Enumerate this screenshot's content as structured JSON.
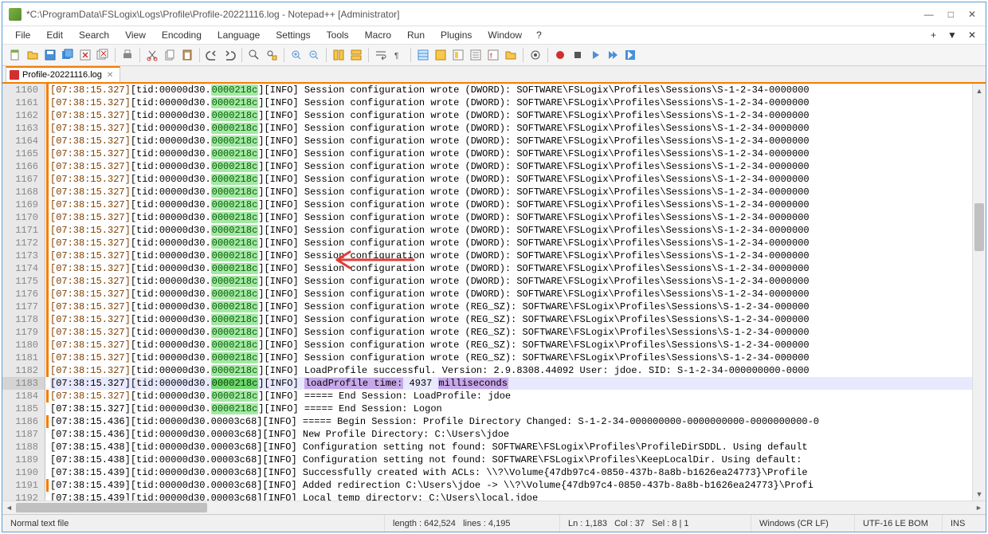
{
  "window": {
    "title": "*C:\\ProgramData\\FSLogix\\Logs\\Profile\\Profile-20221116.log - Notepad++ [Administrator]"
  },
  "menu": {
    "items": [
      "File",
      "Edit",
      "Search",
      "View",
      "Encoding",
      "Language",
      "Settings",
      "Tools",
      "Macro",
      "Run",
      "Plugins",
      "Window",
      "?"
    ]
  },
  "tab": {
    "name": "Profile-20221116.log"
  },
  "colors": {
    "tab_active_border": "#f57c00",
    "margin_bar": "#f57c00",
    "gutter_bg": "#e8e8e8",
    "hex_bg": "#a5e8a5",
    "hex_cur_bg": "#6fd66f",
    "highlight_bg": "#c5a8e8",
    "current_line_bg": "#e8e8ff",
    "arrow": "#e53935",
    "timestamp": "#804000"
  },
  "editor": {
    "first_line": 1160,
    "current_line": 1183,
    "timestamp": "[07:38:15.327]",
    "timestamp_436": "[07:38:15.436]",
    "timestamp_438": "[07:38:15.438]",
    "timestamp_439": "[07:38:15.439]",
    "tid_prefix": "[tid:00000d30.",
    "hex": "0000218c",
    "hex68": "00003c68",
    "info": "][INFO]",
    "pad": "            ",
    "msg_dword": "Session configuration wrote (DWORD): SOFTWARE\\FSLogix\\Profiles\\Sessions\\S-1-2-34-0000000",
    "msg_regsz": "Session configuration wrote (REG_SZ): SOFTWARE\\FSLogix\\Profiles\\Sessions\\S-1-2-34-000000",
    "msg_loadok": "LoadProfile successful. Version: 2.9.8308.44092 User: jdoe. SID: S-1-2-34-000000000-0000",
    "msg_lp_pre": "loadProfile time:",
    "msg_lp_mid": " 4937 ",
    "msg_lp_post": "milliseconds",
    "msg_end1": "===== End Session:  LoadProfile: jdoe",
    "msg_end2": "===== End Session: Logon",
    "msg_begin": "===== Begin Session: Profile Directory Changed: S-1-2-34-000000000-0000000000-0000000000-0",
    "msg_newdir": "New Profile Directory: C:\\Users\\jdoe",
    "msg_cfg1": "Configuration setting not found: SOFTWARE\\FSLogix\\Profiles\\ProfileDirSDDL.  Using default",
    "msg_cfg2": "Configuration setting not found: SOFTWARE\\FSLogix\\Profiles\\KeepLocalDir.  Using default: ",
    "msg_acl": "Successfully created with ACLs: \\\\?\\Volume{47db97c4-0850-437b-8a8b-b1626ea24773}\\Profile",
    "msg_redir": "Added redirection C:\\Users\\jdoe -> \\\\?\\Volume{47db97c4-0850-437b-8a8b-b1626ea24773}\\Profi",
    "msg_local": "Local temp directory: C:\\Users\\local.jdoe"
  },
  "statusbar": {
    "type": "Normal text file",
    "length_label": "length :",
    "length": "642,524",
    "lines_label": "lines :",
    "lines": "4,195",
    "ln_label": "Ln :",
    "ln": "1,183",
    "col_label": "Col :",
    "col": "37",
    "sel_label": "Sel :",
    "sel": "8 | 1",
    "eol": "Windows (CR LF)",
    "encoding": "UTF-16 LE BOM",
    "ins": "INS"
  }
}
